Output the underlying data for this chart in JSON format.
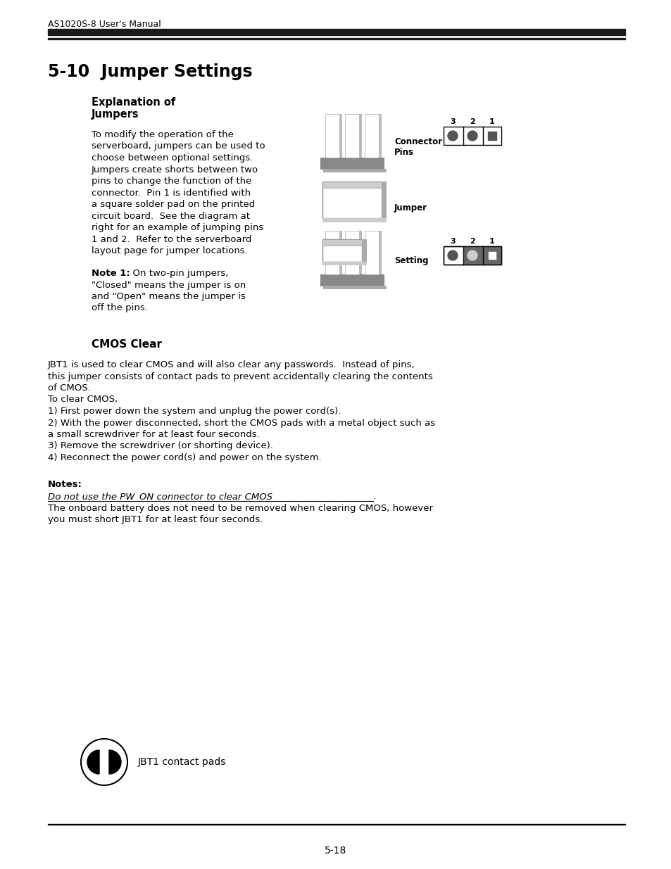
{
  "page_header": "AS1020S-8 User's Manual",
  "section_title": "5-10  Jumper Settings",
  "subsection1_line1": "Explanation of",
  "subsection1_line2": "Jumpers",
  "body1_lines": [
    "To modify the operation of the",
    "serverboard, jumpers can be used to",
    "choose between optional settings.",
    "Jumpers create shorts between two",
    "pins to change the function of the",
    "connector.  Pin 1 is identified with",
    "a square solder pad on the printed",
    "circuit board.  See the diagram at",
    "right for an example of jumping pins",
    "1 and 2.  Refer to the serverboard",
    "layout page for jumper locations."
  ],
  "note1_bold": "Note 1:",
  "note1_rest_lines": [
    "  On two-pin jumpers,",
    "\"Closed\" means the jumper is on",
    "and \"Open\" means the jumper is",
    "off the pins."
  ],
  "subsection2": "CMOS Clear",
  "body2_lines": [
    "JBT1 is used to clear CMOS and will also clear any passwords.  Instead of pins,",
    "this jumper consists of contact pads to prevent accidentally clearing the contents",
    "of CMOS.",
    "To clear CMOS,",
    "1) First power down the system and unplug the power cord(s).",
    "2) With the power disconnected, short the CMOS pads with a metal object such as",
    "a small screwdriver for at least four seconds.",
    "3) Remove the screwdriver (or shorting device).",
    "4) Reconnect the power cord(s) and power on the system."
  ],
  "notes_bold": "Notes:",
  "notes_underline": "Do not use the PW_ON connector to clear CMOS",
  "notes_line2": "The onboard battery does not need to be removed when clearing CMOS, however",
  "notes_line3": "you must short JBT1 for at least four seconds.",
  "jbt1_label": "JBT1 contact pads",
  "page_number": "5-18",
  "bg_color": "#ffffff",
  "text_color": "#000000",
  "header_bar_color": "#1a1a1a",
  "label_connector": "Connector\nPins",
  "label_jumper": "Jumper",
  "label_setting": "Setting"
}
